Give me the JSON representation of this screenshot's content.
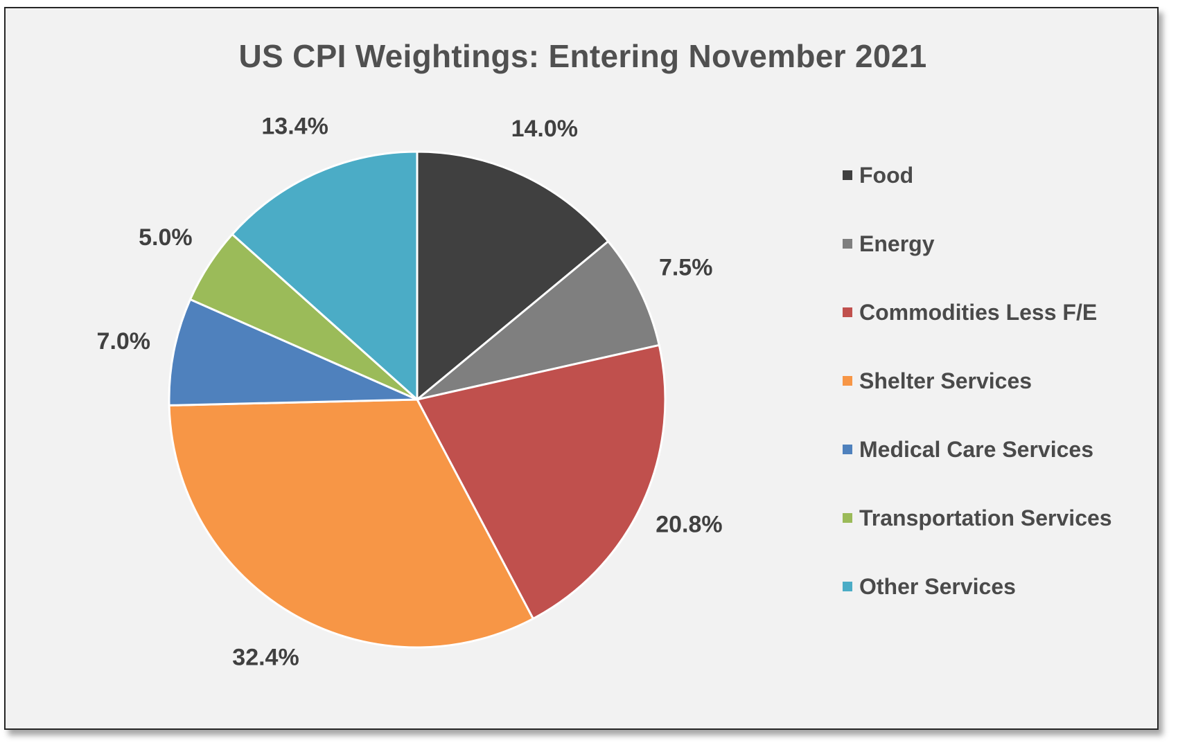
{
  "chart_data": {
    "type": "pie",
    "title": "US CPI Weightings: Entering November 2021",
    "legend_position": "right",
    "slices": [
      {
        "name": "Food",
        "value": 14.0,
        "label": "14.0%",
        "color": "#404040"
      },
      {
        "name": "Energy",
        "value": 7.5,
        "label": "7.5%",
        "color": "#7f7f7f"
      },
      {
        "name": "Commodities Less F/E",
        "value": 20.8,
        "label": "20.8%",
        "color": "#c0504d"
      },
      {
        "name": "Shelter Services",
        "value": 32.4,
        "label": "32.4%",
        "color": "#f79646"
      },
      {
        "name": "Medical Care Services",
        "value": 7.0,
        "label": "7.0%",
        "color": "#4f81bd"
      },
      {
        "name": "Transportation Services",
        "value": 5.0,
        "label": "5.0%",
        "color": "#9bbb59"
      },
      {
        "name": "Other Services",
        "value": 13.4,
        "label": "13.4%",
        "color": "#4bacc6"
      }
    ]
  }
}
